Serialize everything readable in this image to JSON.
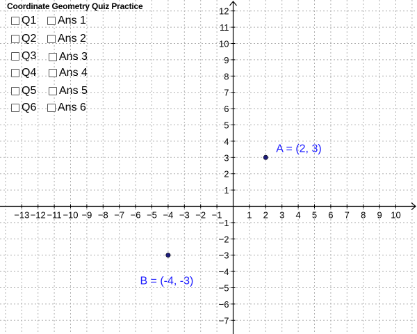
{
  "title": "Coordinate Geometry Quiz Practice",
  "questions": [
    {
      "label": "Q1",
      "checked": false
    },
    {
      "label": "Q2",
      "checked": false
    },
    {
      "label": "Q3",
      "checked": false
    },
    {
      "label": "Q4",
      "checked": false
    },
    {
      "label": "Q5",
      "checked": false
    },
    {
      "label": "Q6",
      "checked": false
    }
  ],
  "answers": [
    {
      "label": "Ans 1",
      "checked": false
    },
    {
      "label": "Ans 2",
      "checked": false
    },
    {
      "label": "Ans 3",
      "checked": false
    },
    {
      "label": "Ans 4",
      "checked": false
    },
    {
      "label": "Ans 5",
      "checked": false
    },
    {
      "label": "Ans 6",
      "checked": false
    }
  ],
  "axes": {
    "x_ticks": [
      -13,
      -12,
      -11,
      -10,
      -9,
      -8,
      -7,
      -6,
      -5,
      -4,
      -3,
      -2,
      -1,
      1,
      2,
      3,
      4,
      5,
      6,
      7,
      8,
      9,
      10
    ],
    "y_ticks": [
      -7,
      -6,
      -5,
      -4,
      -3,
      -2,
      -1,
      1,
      2,
      3,
      4,
      5,
      6,
      7,
      8,
      9,
      10,
      11,
      12
    ],
    "grid": true
  },
  "points": [
    {
      "name": "A",
      "x": 2,
      "y": 3,
      "label": "A = (2, 3)",
      "color": "#1a1aff"
    },
    {
      "name": "B",
      "x": -4,
      "y": -3,
      "label": "B = (-4, -3)",
      "color": "#1a1aff"
    }
  ],
  "colors": {
    "axis": "#000000",
    "grid": "#b0b0b0",
    "point_fill": "#1c1c7a"
  }
}
